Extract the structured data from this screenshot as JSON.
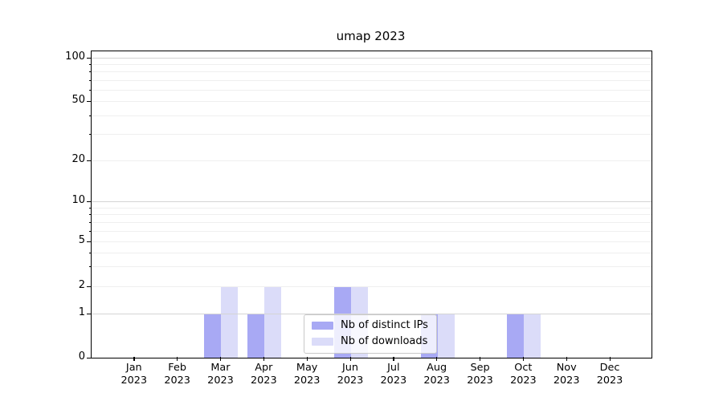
{
  "title": "umap 2023",
  "chart_data": {
    "type": "bar",
    "title": "umap 2023",
    "categories": [
      {
        "month": "Jan",
        "year": "2023"
      },
      {
        "month": "Feb",
        "year": "2023"
      },
      {
        "month": "Mar",
        "year": "2023"
      },
      {
        "month": "Apr",
        "year": "2023"
      },
      {
        "month": "May",
        "year": "2023"
      },
      {
        "month": "Jun",
        "year": "2023"
      },
      {
        "month": "Jul",
        "year": "2023"
      },
      {
        "month": "Aug",
        "year": "2023"
      },
      {
        "month": "Sep",
        "year": "2023"
      },
      {
        "month": "Oct",
        "year": "2023"
      },
      {
        "month": "Nov",
        "year": "2023"
      },
      {
        "month": "Dec",
        "year": "2023"
      }
    ],
    "series": [
      {
        "name": "Nb of distinct IPs",
        "color": "#a8a9f4",
        "values": [
          0,
          0,
          1,
          1,
          0,
          2,
          0,
          1,
          0,
          1,
          0,
          0
        ]
      },
      {
        "name": "Nb of downloads",
        "color": "#dbdcf9",
        "values": [
          0,
          0,
          2,
          2,
          0,
          2,
          0,
          1,
          0,
          1,
          0,
          0
        ]
      }
    ],
    "xlabel": "",
    "ylabel": "",
    "y_axis": {
      "scale": "symlog",
      "tick_values": [
        0,
        1,
        2,
        5,
        10,
        20,
        50,
        100
      ],
      "tick_labels": [
        "0",
        "1",
        "2",
        "5",
        "10",
        "20",
        "50",
        "100"
      ],
      "minor_tick_values": [
        3,
        4,
        6,
        7,
        8,
        9,
        30,
        40,
        60,
        70,
        80,
        90
      ],
      "major_grid_values": [
        1,
        10,
        100
      ],
      "ylim": [
        0,
        110
      ]
    },
    "legend": {
      "items": [
        "Nb of distinct IPs",
        "Nb of downloads"
      ],
      "position": "lower center"
    },
    "grid": true
  },
  "colors": {
    "bar_distinct_ips": "#a8a9f4",
    "bar_downloads": "#dbdcf9",
    "grid_major": "#d4d4d4",
    "grid_minor": "#efefef",
    "spine": "#000000",
    "legend_border": "#c9c9c9",
    "legend_background": "rgba(255,255,255,0.8)",
    "text": "#000000"
  }
}
